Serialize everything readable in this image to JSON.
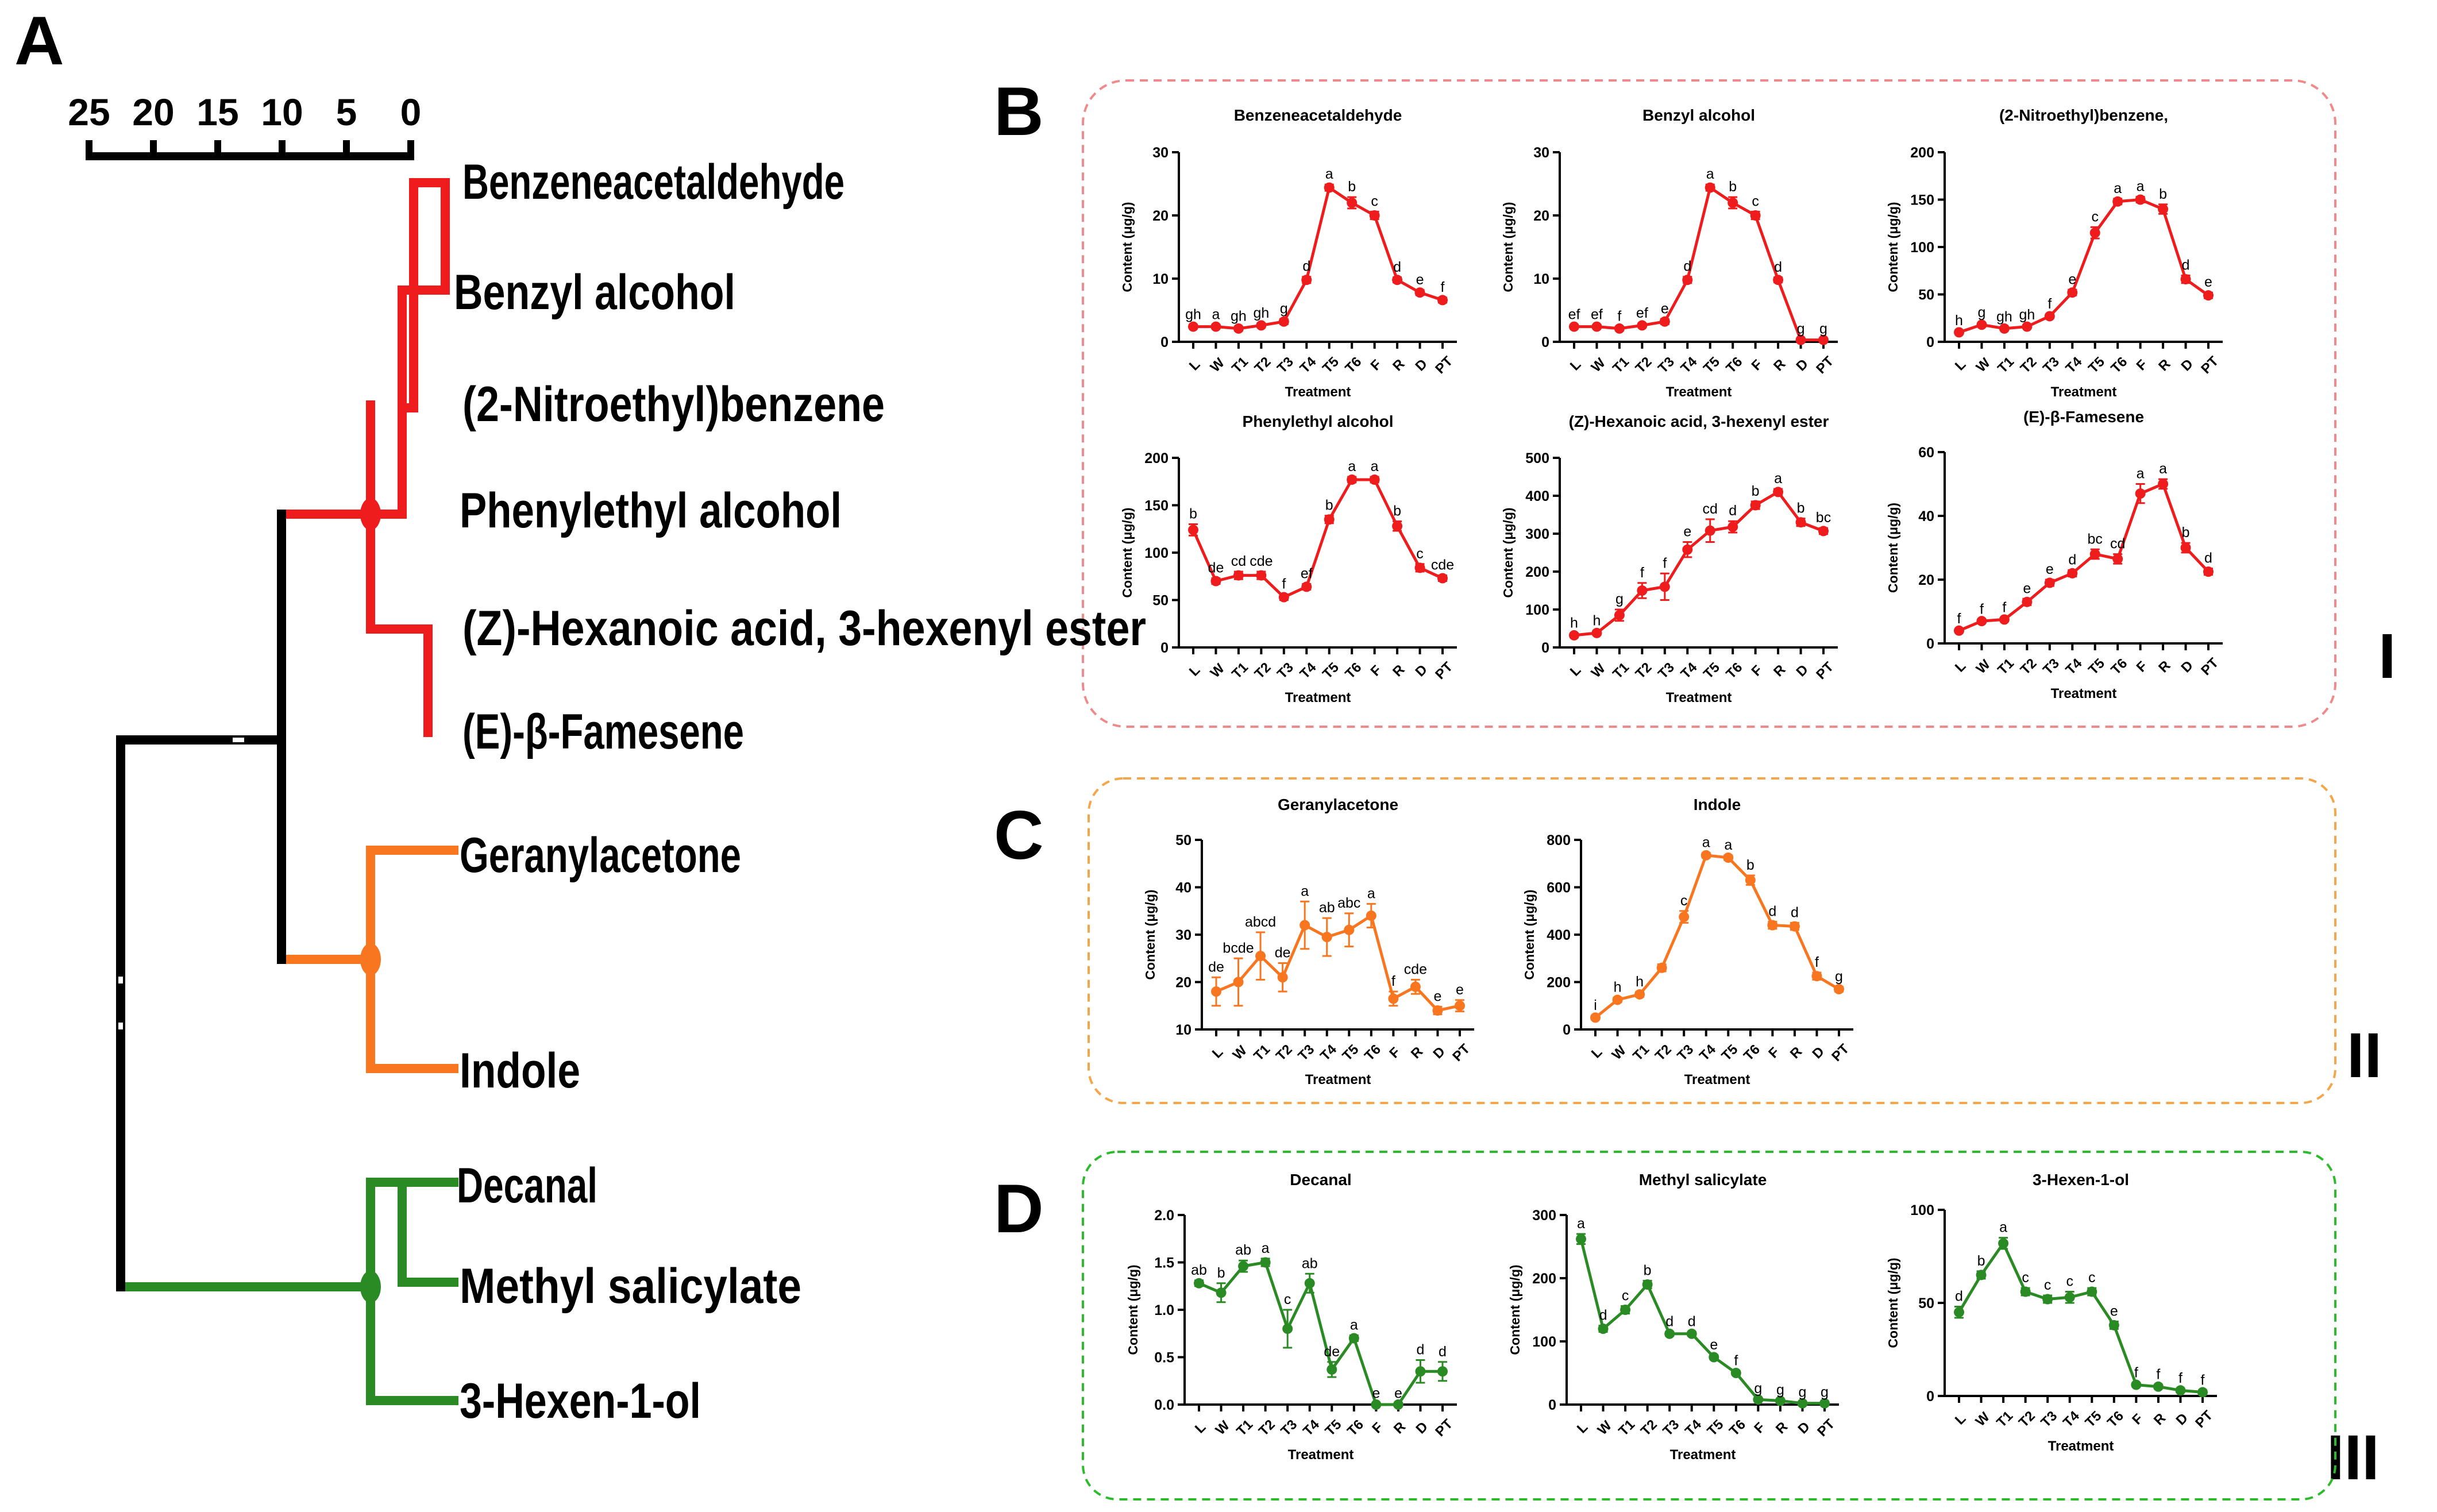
{
  "panel_letters": {
    "A": "A",
    "B": "B",
    "C": "C",
    "D": "D"
  },
  "cluster_labels": [
    "I",
    "II",
    "III"
  ],
  "colors": {
    "red": "#ee1c1c",
    "orange": "#f7761f",
    "green": "#2a8b25",
    "black": "#000000",
    "box_red": "#f08a8a",
    "box_orange": "#f3a64a",
    "box_green": "#2dbb2d"
  },
  "dendrogram": {
    "scale_ticks": [
      "25",
      "20",
      "15",
      "10",
      "5",
      "0"
    ],
    "leaves": [
      {
        "name": "Benzeneacetaldehyde",
        "color": "red"
      },
      {
        "name": "Benzyl alcohol",
        "color": "red"
      },
      {
        "name": "(2-Nitroethyl)benzene",
        "color": "red"
      },
      {
        "name": "Phenylethyl alcohol",
        "color": "red"
      },
      {
        "name": "(Z)-Hexanoic acid, 3-hexenyl ester",
        "color": "red"
      },
      {
        "name": "(E)-β-Famesene",
        "color": "red"
      },
      {
        "name": "Geranylacetone",
        "color": "orange"
      },
      {
        "name": "Indole",
        "color": "orange"
      },
      {
        "name": "Decanal",
        "color": "green"
      },
      {
        "name": "Methyl salicylate",
        "color": "green"
      },
      {
        "name": "3-Hexen-1-ol",
        "color": "green"
      }
    ]
  },
  "chart_data": [
    {
      "type": "line",
      "panel": "B",
      "title": "Benzeneacetaldehyde",
      "xlabel": "Treatment",
      "ylabel": "Content (μg/g)",
      "categories": [
        "L",
        "W",
        "T1",
        "T2",
        "T3",
        "T4",
        "T5",
        "T6",
        "F",
        "R",
        "D",
        "PT"
      ],
      "values": [
        2.4,
        2.4,
        2.1,
        2.6,
        3.2,
        9.8,
        24.4,
        22.0,
        20.0,
        9.8,
        7.8,
        6.6
      ],
      "errors": [
        0.3,
        0.3,
        0.3,
        0.3,
        0.4,
        0.5,
        0.5,
        0.9,
        0.6,
        0.4,
        0.4,
        0.4
      ],
      "letters": [
        "gh",
        "a",
        "gh",
        "gh",
        "g",
        "d",
        "a",
        "b",
        "c",
        "d",
        "e",
        "f"
      ],
      "ylim": [
        0,
        30
      ],
      "yticks": [
        "0",
        "10",
        "20",
        "30"
      ]
    },
    {
      "type": "line",
      "panel": "B",
      "title": "Benzyl alcohol",
      "xlabel": "Treatment",
      "ylabel": "Content (μg/g)",
      "categories": [
        "L",
        "W",
        "T1",
        "T2",
        "T3",
        "T4",
        "T5",
        "T6",
        "F",
        "R",
        "D",
        "PT"
      ],
      "values": [
        2.4,
        2.4,
        2.1,
        2.6,
        3.2,
        9.8,
        24.4,
        22.0,
        20.0,
        9.8,
        0.3,
        0.3
      ],
      "errors": [
        0.3,
        0.3,
        0.3,
        0.3,
        0.4,
        0.5,
        0.5,
        0.9,
        0.6,
        0.4,
        0.1,
        0.1
      ],
      "letters": [
        "ef",
        "ef",
        "f",
        "ef",
        "e",
        "d",
        "a",
        "b",
        "c",
        "d",
        "g",
        "g"
      ],
      "ylim": [
        0,
        30
      ],
      "yticks": [
        "0",
        "10",
        "20",
        "30"
      ]
    },
    {
      "type": "line",
      "panel": "B",
      "title": "(2-Nitroethyl)benzene,",
      "xlabel": "Treatment",
      "ylabel": "Content (μg/g)",
      "categories": [
        "L",
        "W",
        "T1",
        "T2",
        "T3",
        "T4",
        "T5",
        "T6",
        "F",
        "R",
        "D",
        "PT"
      ],
      "values": [
        10,
        18,
        14,
        16,
        27,
        52,
        115,
        148,
        150,
        140,
        66,
        49
      ],
      "errors": [
        1.5,
        2,
        1.5,
        1.5,
        2,
        3,
        6,
        3,
        3,
        5,
        4,
        3
      ],
      "letters": [
        "h",
        "g",
        "gh",
        "gh",
        "f",
        "e",
        "c",
        "a",
        "a",
        "b",
        "d",
        "e"
      ],
      "ylim": [
        0,
        200
      ],
      "yticks": [
        "0",
        "50",
        "100",
        "150",
        "200"
      ]
    },
    {
      "type": "line",
      "panel": "B",
      "title": "Phenylethyl alcohol",
      "xlabel": "Treatment",
      "ylabel": "Content (μg/g)",
      "categories": [
        "L",
        "W",
        "T1",
        "T2",
        "T3",
        "T4",
        "T5",
        "T6",
        "F",
        "R",
        "D",
        "PT"
      ],
      "values": [
        124,
        70,
        76,
        76,
        53,
        64,
        135,
        177,
        177,
        128,
        84,
        73
      ],
      "errors": [
        6,
        3,
        4,
        4,
        3,
        3,
        4,
        3,
        3,
        5,
        4,
        3
      ],
      "letters": [
        "b",
        "de",
        "cd",
        "cde",
        "f",
        "ef",
        "b",
        "a",
        "a",
        "b",
        "c",
        "cde"
      ],
      "ylim": [
        0,
        200
      ],
      "yticks": [
        "0",
        "50",
        "100",
        "150",
        "200"
      ]
    },
    {
      "type": "line",
      "panel": "B",
      "title": "(Z)-Hexanoic acid, 3-hexenyl ester",
      "xlabel": "Treatment",
      "ylabel": "Content (μg/g)",
      "categories": [
        "L",
        "W",
        "T1",
        "T2",
        "T3",
        "T4",
        "T5",
        "T6",
        "F",
        "R",
        "D",
        "PT"
      ],
      "values": [
        32,
        38,
        85,
        150,
        160,
        258,
        308,
        318,
        375,
        410,
        330,
        307
      ],
      "errors": [
        5,
        5,
        15,
        20,
        35,
        20,
        30,
        15,
        10,
        8,
        10,
        8
      ],
      "letters": [
        "h",
        "h",
        "g",
        "f",
        "f",
        "e",
        "cd",
        "d",
        "b",
        "a",
        "b",
        "bc"
      ],
      "ylim": [
        0,
        500
      ],
      "yticks": [
        "0",
        "100",
        "200",
        "300",
        "400",
        "500"
      ]
    },
    {
      "type": "line",
      "panel": "B",
      "title": "(E)-β-Famesene",
      "xlabel": "Treatment",
      "ylabel": "Content (μg/g)",
      "categories": [
        "L",
        "W",
        "T1",
        "T2",
        "T3",
        "T4",
        "T5",
        "T6",
        "F",
        "R",
        "D",
        "PT"
      ],
      "values": [
        4,
        7,
        7.5,
        13,
        19,
        22,
        28,
        26.5,
        47,
        50,
        30,
        22.5
      ],
      "errors": [
        0.5,
        0.5,
        0.5,
        1,
        1,
        1,
        1.5,
        1.5,
        3,
        1.5,
        1.5,
        1
      ],
      "letters": [
        "f",
        "f",
        "f",
        "e",
        "e",
        "d",
        "bc",
        "cd",
        "a",
        "a",
        "b",
        "d"
      ],
      "ylim": [
        0,
        60
      ],
      "yticks": [
        "0",
        "20",
        "40",
        "60"
      ]
    },
    {
      "type": "line",
      "panel": "C",
      "title": "Geranylacetone",
      "xlabel": "Treatment",
      "ylabel": "Content (μg/g)",
      "categories": [
        "L",
        "W",
        "T1",
        "T2",
        "T3",
        "T4",
        "T5",
        "T6",
        "F",
        "R",
        "D",
        "PT"
      ],
      "values": [
        18,
        20,
        25.5,
        21,
        32,
        29.5,
        31,
        34,
        16.5,
        19,
        14,
        15
      ],
      "errors": [
        3,
        5,
        5,
        3,
        5,
        4,
        3.5,
        2.5,
        1.5,
        1.5,
        0.8,
        1.2
      ],
      "letters": [
        "de",
        "bcde",
        "abcd",
        "de",
        "a",
        "ab",
        "abc",
        "a",
        "f",
        "cde",
        "e",
        "e"
      ],
      "ylim": [
        10,
        50
      ],
      "yticks": [
        "10",
        "20",
        "30",
        "40",
        "50"
      ]
    },
    {
      "type": "line",
      "panel": "C",
      "title": "Indole",
      "xlabel": "Treatment",
      "ylabel": "Content (μg/g)",
      "categories": [
        "L",
        "W",
        "T1",
        "T2",
        "T3",
        "T4",
        "T5",
        "T6",
        "F",
        "R",
        "D",
        "PT"
      ],
      "values": [
        50,
        125,
        148,
        260,
        475,
        735,
        725,
        630,
        440,
        435,
        225,
        170
      ],
      "errors": [
        8,
        10,
        10,
        15,
        25,
        10,
        10,
        20,
        15,
        15,
        15,
        10
      ],
      "letters": [
        "i",
        "h",
        "h",
        "",
        "c",
        "a",
        "a",
        "b",
        "d",
        "d",
        "f",
        "g"
      ],
      "ylim": [
        0,
        800
      ],
      "yticks": [
        "0",
        "200",
        "400",
        "600",
        "800"
      ]
    },
    {
      "type": "line",
      "panel": "D",
      "title": "Decanal",
      "xlabel": "Treatment",
      "ylabel": "Content (μg/g)",
      "categories": [
        "L",
        "W",
        "T1",
        "T2",
        "T3",
        "T4",
        "T5",
        "T6",
        "F",
        "R",
        "D",
        "PT"
      ],
      "values": [
        1.28,
        1.18,
        1.46,
        1.5,
        0.8,
        1.28,
        0.37,
        0.7,
        0.0,
        0.0,
        0.35,
        0.35
      ],
      "errors": [
        0.03,
        0.1,
        0.06,
        0.04,
        0.2,
        0.1,
        0.08,
        0.03,
        0.01,
        0.01,
        0.12,
        0.1
      ],
      "letters": [
        "ab",
        "b",
        "ab",
        "a",
        "c",
        "ab",
        "de",
        "a",
        "e",
        "e",
        "d",
        "d"
      ],
      "ylim": [
        0,
        2.0
      ],
      "yticks": [
        "0.0",
        "0.5",
        "1.0",
        "1.5",
        "2.0"
      ]
    },
    {
      "type": "line",
      "panel": "D",
      "title": "Methyl salicylate",
      "xlabel": "Treatment",
      "ylabel": "Content (μg/g)",
      "categories": [
        "L",
        "W",
        "T1",
        "T2",
        "T3",
        "T4",
        "T5",
        "T6",
        "F",
        "R",
        "D",
        "PT"
      ],
      "values": [
        262,
        120,
        150,
        190,
        112,
        112,
        75,
        50,
        8,
        6,
        2,
        2
      ],
      "errors": [
        8,
        5,
        6,
        6,
        3,
        3,
        3,
        3,
        1,
        1,
        1,
        1
      ],
      "letters": [
        "a",
        "d",
        "c",
        "b",
        "d",
        "d",
        "e",
        "f",
        "g",
        "g",
        "g",
        "g"
      ],
      "ylim": [
        0,
        300
      ],
      "yticks": [
        "0",
        "100",
        "200",
        "300"
      ]
    },
    {
      "type": "line",
      "panel": "D",
      "title": "3-Hexen-1-ol",
      "xlabel": "Treatment",
      "ylabel": "Content (μg/g)",
      "categories": [
        "L",
        "W",
        "T1",
        "T2",
        "T3",
        "T4",
        "T5",
        "T6",
        "F",
        "R",
        "D",
        "PT"
      ],
      "values": [
        45,
        65,
        82,
        56,
        52,
        53,
        56,
        38,
        6,
        5,
        3,
        2
      ],
      "errors": [
        3,
        2,
        3,
        2,
        2,
        3,
        2,
        2,
        1,
        1,
        1,
        1
      ],
      "letters": [
        "d",
        "b",
        "a",
        "c",
        "c",
        "c",
        "c",
        "e",
        "f",
        "f",
        "f",
        "f"
      ],
      "ylim": [
        0,
        100
      ],
      "yticks": [
        "0",
        "50",
        "100"
      ]
    }
  ]
}
